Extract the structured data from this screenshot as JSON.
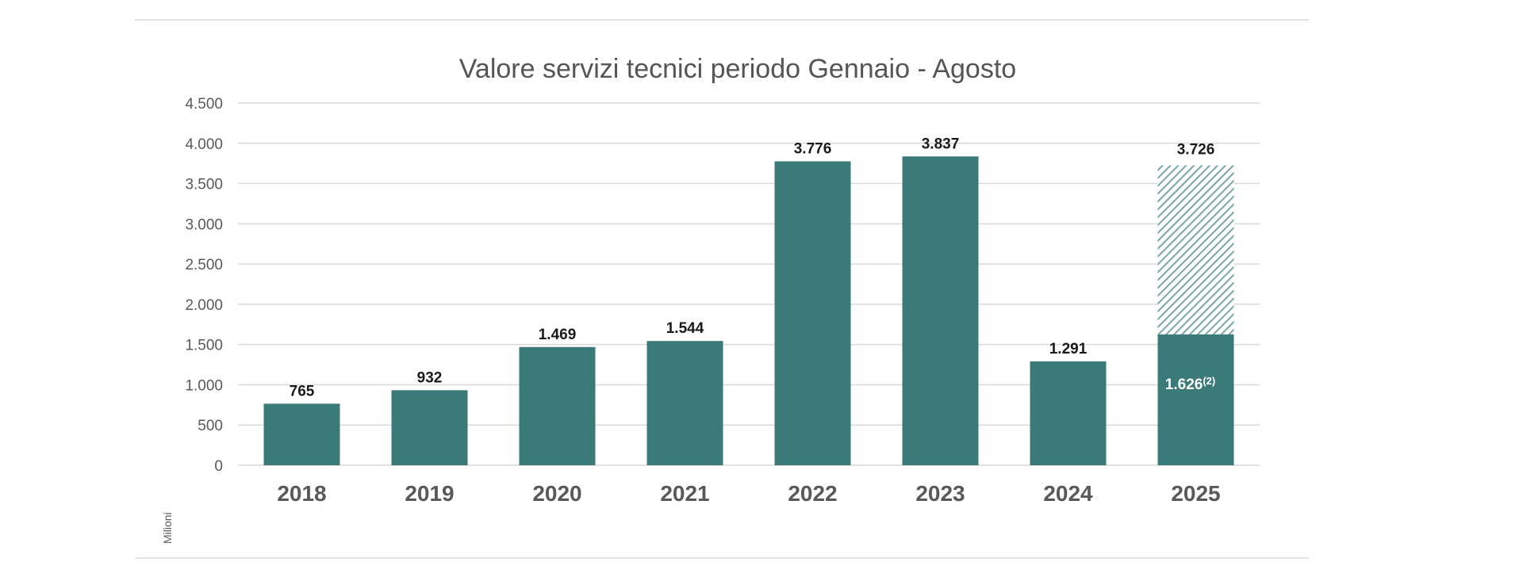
{
  "chart_data": {
    "type": "bar",
    "title": "Valore servizi tecnici periodo Gennaio - Agosto",
    "ylabel": "Milioni",
    "xlabel": "",
    "ylim": [
      0,
      4500
    ],
    "yticks": [
      0,
      500,
      1000,
      1500,
      2000,
      2500,
      3000,
      3500,
      4000,
      4500
    ],
    "ytick_labels": [
      "0",
      "500",
      "1.000",
      "1.500",
      "2.000",
      "2.500",
      "3.000",
      "3.500",
      "4.000",
      "4.500"
    ],
    "grid": true,
    "categories": [
      "2018",
      "2019",
      "2020",
      "2021",
      "2022",
      "2023",
      "2024",
      "2025"
    ],
    "values": [
      765,
      932,
      1469,
      1544,
      3776,
      3837,
      1291,
      1626
    ],
    "value_labels": [
      "765",
      "932",
      "1.469",
      "1.544",
      "3.776",
      "3.837",
      "1.291",
      "1.626"
    ],
    "inside_label_note": "(2)",
    "projection": {
      "category": "2025",
      "value": 3726,
      "label": "3.726",
      "style": "hatched"
    },
    "colors": {
      "bar": "#3a7b7a",
      "projection_hatch": "#7aa7a6",
      "grid": "#d9d9d9"
    }
  }
}
